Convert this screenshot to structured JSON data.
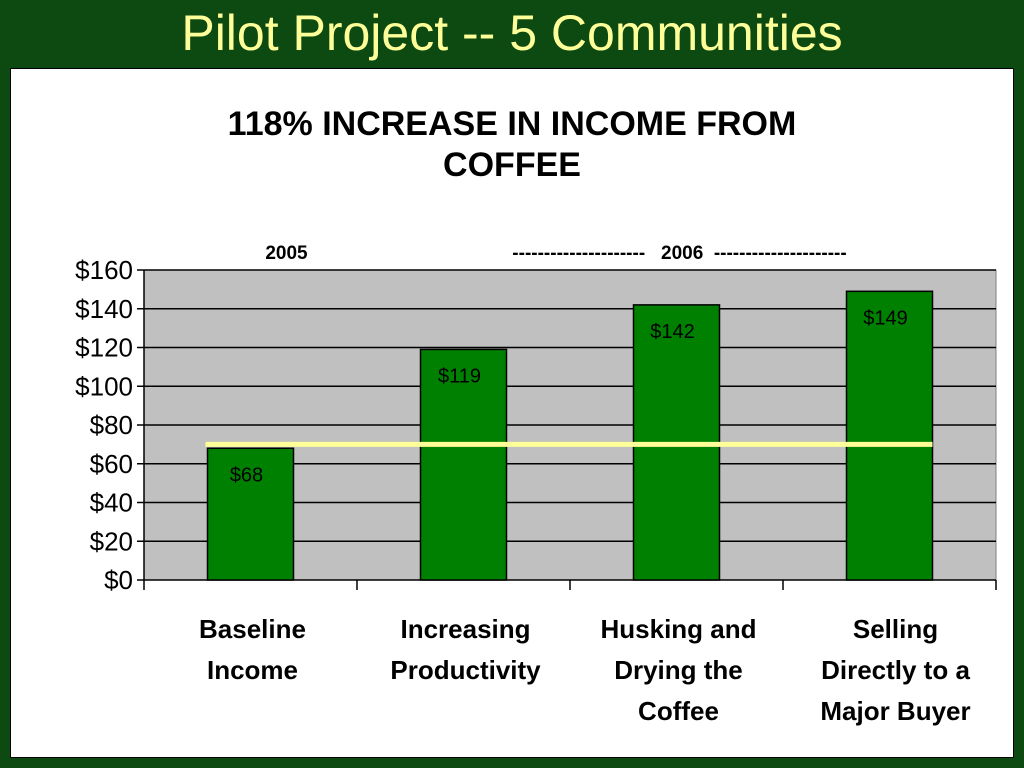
{
  "slide": {
    "title": "Pilot Project -- 5 Communities"
  },
  "colors": {
    "background": "#0d4a12",
    "title_text": "#ffff99",
    "bar_fill": "#008000",
    "plot_area": "#c0c0c0",
    "reference_line": "#ffff99"
  },
  "chart_data": {
    "type": "bar",
    "title_lines": [
      "118% INCREASE IN INCOME FROM",
      "COFFEE"
    ],
    "period_labels": [
      {
        "text": "2005",
        "category_index": 0
      },
      {
        "text": "---------------------   2006  ---------------------",
        "category_index": 2
      }
    ],
    "categories": [
      [
        "Baseline",
        "Income"
      ],
      [
        "Increasing",
        "Productivity"
      ],
      [
        "Husking and",
        "Drying the",
        "Coffee"
      ],
      [
        "Selling",
        "Directly to a",
        "Major Buyer"
      ]
    ],
    "values": [
      68,
      119,
      142,
      149
    ],
    "data_labels": [
      "$68",
      "$119",
      "$142",
      "$149"
    ],
    "ylim": [
      0,
      160
    ],
    "yticks": [
      0,
      20,
      40,
      60,
      80,
      100,
      120,
      140,
      160
    ],
    "ytick_labels": [
      "$0",
      "$20",
      "$40",
      "$60",
      "$80",
      "$100",
      "$120",
      "$140",
      "$160"
    ],
    "reference_line_value": 70,
    "grid": true,
    "legend": "none"
  }
}
